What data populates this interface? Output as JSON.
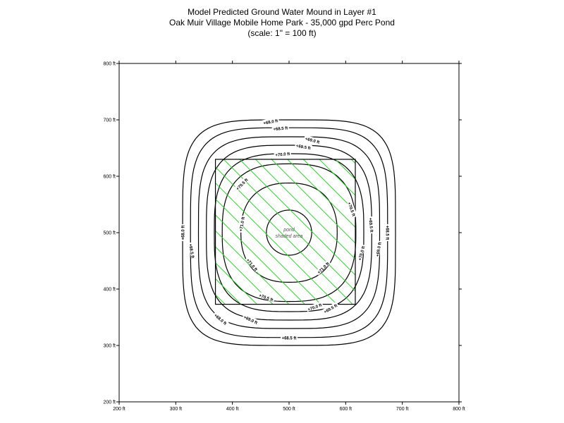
{
  "title": {
    "line1": "Model Predicted Ground Water Mound in Layer #1",
    "line2": "Oak Muir Village Mobile Home Park - 35,000 gpd Perc Pond",
    "line3": "(scale: 1\" = 100 ft)"
  },
  "axes": {
    "x_range": [
      200,
      800
    ],
    "y_range": [
      200,
      800
    ],
    "x_ticks": [
      "200 ft",
      "300 ft",
      "400 ft",
      "500 ft",
      "600 ft",
      "700 ft",
      "800 ft"
    ],
    "y_ticks": [
      "800 ft",
      "700 ft",
      "600 ft",
      "500 ft",
      "400 ft",
      "300 ft",
      "200 ft"
    ],
    "x_tick_values": [
      200,
      300,
      400,
      500,
      600,
      700,
      800
    ],
    "y_tick_values": [
      800,
      700,
      600,
      500,
      400,
      300,
      200
    ]
  },
  "pond": {
    "label_line1": "pond",
    "label_line2": "shaded area",
    "x_range": [
      370,
      617
    ],
    "y_range": [
      373,
      630
    ],
    "hatch_color": "#33cc33",
    "outline_color": "#000000"
  },
  "contours": {
    "center": [
      500,
      500
    ],
    "radii": [
      [
        40,
        40
      ],
      [
        85,
        88
      ],
      [
        118,
        122
      ],
      [
        132,
        140
      ],
      [
        146,
        155
      ],
      [
        160,
        170
      ],
      [
        174,
        186
      ],
      [
        188,
        200
      ]
    ],
    "labels": [
      "+71.0 ft",
      "+70.5 ft",
      "+70.0 ft",
      "+69.5 ft",
      "+69.0 ft",
      "+68.5 ft",
      "+68.0 ft"
    ]
  }
}
